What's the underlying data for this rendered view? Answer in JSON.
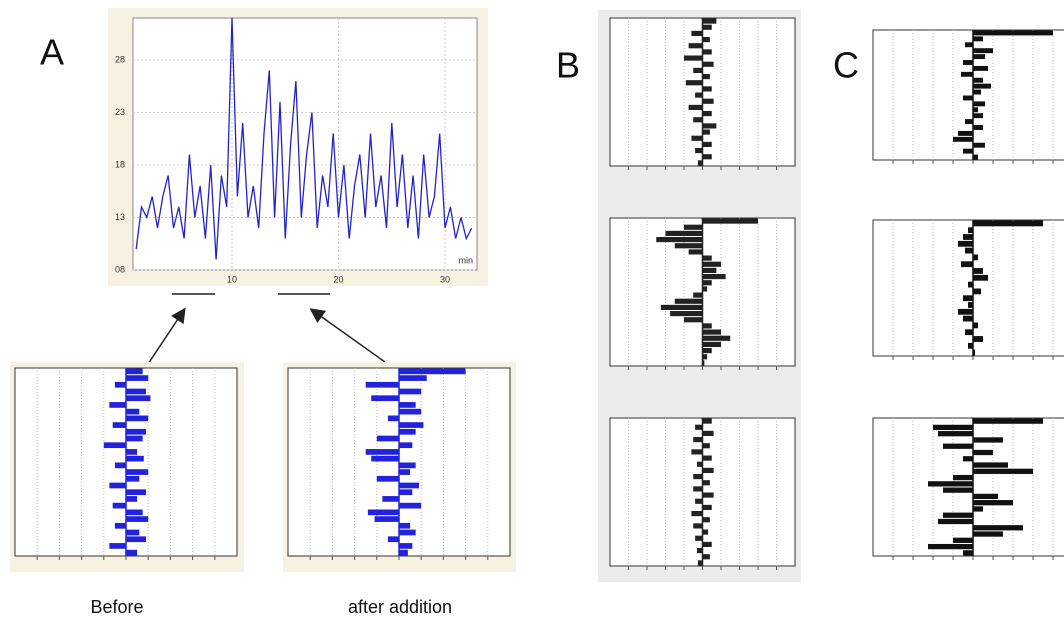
{
  "chart_data": [
    {
      "type": "line",
      "panel": "A",
      "x": [
        1.0,
        1.5,
        2.0,
        2.5,
        3.0,
        3.5,
        4.0,
        4.5,
        5.0,
        5.5,
        6.0,
        6.5,
        7.0,
        7.5,
        8.0,
        8.5,
        9.0,
        9.5,
        10.0,
        10.5,
        11.0,
        11.5,
        12.0,
        12.5,
        13.0,
        13.5,
        14.0,
        14.5,
        15.0,
        15.5,
        16.0,
        16.5,
        17.0,
        17.5,
        18.0,
        18.5,
        19.0,
        19.5,
        20.0,
        20.5,
        21.0,
        21.5,
        22.0,
        22.5,
        23.0,
        23.5,
        24.0,
        24.5,
        25.0,
        25.5,
        26.0,
        26.5,
        27.0,
        27.5,
        28.0,
        28.5,
        29.0,
        29.5,
        30.0,
        30.5,
        31.0,
        31.5,
        32.0,
        32.5
      ],
      "series": [
        {
          "color": "#2222cc",
          "values": [
            10,
            14,
            13,
            15,
            12,
            15,
            17,
            12,
            14,
            11,
            19,
            13,
            16,
            11,
            18,
            9,
            17,
            14,
            32,
            15,
            22,
            13,
            16,
            12,
            21,
            27,
            13,
            24,
            11,
            20,
            26,
            13,
            19,
            23,
            12,
            17,
            14,
            21,
            13,
            18,
            11,
            16,
            19,
            13,
            21,
            14,
            17,
            12,
            22,
            14,
            19,
            12,
            17,
            11,
            19,
            13,
            15,
            21,
            12,
            14,
            11,
            13,
            11,
            12
          ]
        }
      ],
      "x_unit": "min",
      "xlim": [
        0.7,
        33.0
      ],
      "xticks": [
        10,
        20,
        30
      ],
      "ylim": [
        8,
        32
      ],
      "yticks": [
        {
          "value": 8,
          "label": "08"
        },
        13,
        18,
        23,
        28
      ],
      "grid": true
    },
    {
      "type": "autocorrelation",
      "caption": "Before",
      "color": "#2222dd",
      "xlim": [
        -1,
        1
      ],
      "values": [
        0.15,
        0.2,
        -0.1,
        0.18,
        0.22,
        -0.15,
        0.12,
        0.2,
        -0.12,
        0.18,
        0.15,
        -0.2,
        0.1,
        0.16,
        -0.1,
        0.2,
        0.12,
        -0.15,
        0.18,
        0.1,
        -0.12,
        0.15,
        0.2,
        -0.1,
        0.12,
        0.18,
        -0.15,
        0.1
      ]
    },
    {
      "type": "autocorrelation",
      "caption": "after addition",
      "color": "#2222dd",
      "xlim": [
        -1,
        1
      ],
      "values": [
        0.6,
        0.25,
        -0.3,
        0.2,
        -0.25,
        0.15,
        0.2,
        -0.1,
        0.22,
        0.15,
        -0.2,
        0.12,
        -0.3,
        -0.25,
        0.15,
        0.1,
        -0.2,
        0.18,
        0.12,
        -0.15,
        0.2,
        -0.28,
        -0.22,
        0.1,
        0.15,
        -0.1,
        0.12,
        0.08
      ]
    },
    {
      "type": "autocorrelation",
      "color": "#222",
      "xlim": [
        -1,
        1
      ],
      "values": [
        0.15,
        0.1,
        -0.12,
        0.08,
        -0.15,
        0.1,
        -0.2,
        0.12,
        -0.1,
        0.08,
        -0.18,
        0.1,
        -0.08,
        0.12,
        -0.15,
        0.1,
        -0.1,
        0.15,
        0.08,
        -0.12,
        0.1,
        -0.08,
        0.1,
        -0.05
      ]
    },
    {
      "type": "autocorrelation",
      "color": "#222",
      "xlim": [
        -1,
        1
      ],
      "values": [
        0.6,
        -0.2,
        -0.4,
        -0.5,
        -0.3,
        -0.15,
        0.1,
        0.2,
        0.15,
        0.25,
        0.1,
        0.05,
        -0.1,
        -0.3,
        -0.45,
        -0.35,
        -0.2,
        0.1,
        0.2,
        0.3,
        0.2,
        0.1,
        0.05,
        0.02
      ]
    },
    {
      "type": "autocorrelation",
      "color": "#222",
      "xlim": [
        -1,
        1
      ],
      "values": [
        0.1,
        -0.08,
        0.12,
        -0.1,
        0.08,
        -0.12,
        0.1,
        -0.06,
        0.12,
        -0.1,
        0.08,
        -0.1,
        0.12,
        -0.08,
        0.1,
        -0.12,
        0.08,
        -0.1,
        0.06,
        -0.08,
        0.1,
        -0.06,
        0.08,
        -0.05
      ]
    },
    {
      "type": "autocorrelation",
      "color": "#111",
      "xlim": [
        -1,
        1
      ],
      "values": [
        0.8,
        0.1,
        -0.08,
        0.2,
        0.12,
        -0.1,
        0.15,
        -0.12,
        0.1,
        0.18,
        0.08,
        -0.1,
        0.12,
        0.05,
        0.1,
        -0.08,
        0.1,
        -0.15,
        -0.2,
        0.12,
        -0.1,
        0.05
      ]
    },
    {
      "type": "autocorrelation",
      "color": "#111",
      "xlim": [
        -1,
        1
      ],
      "values": [
        0.7,
        -0.05,
        -0.1,
        -0.15,
        -0.08,
        0.05,
        -0.12,
        0.1,
        0.15,
        -0.05,
        0.08,
        -0.1,
        -0.05,
        -0.15,
        -0.1,
        0.05,
        -0.08,
        0.1,
        -0.05,
        0.02
      ]
    },
    {
      "type": "autocorrelation",
      "color": "#111",
      "xlim": [
        -1,
        1
      ],
      "values": [
        0.7,
        -0.4,
        -0.35,
        0.3,
        -0.3,
        0.2,
        -0.1,
        0.35,
        0.6,
        -0.2,
        -0.45,
        -0.3,
        0.25,
        0.4,
        0.1,
        -0.3,
        -0.35,
        0.5,
        0.3,
        -0.2,
        -0.45,
        -0.1
      ]
    }
  ],
  "labels": {
    "panel_a": "A",
    "panel_b": "B",
    "panel_c": "C"
  }
}
